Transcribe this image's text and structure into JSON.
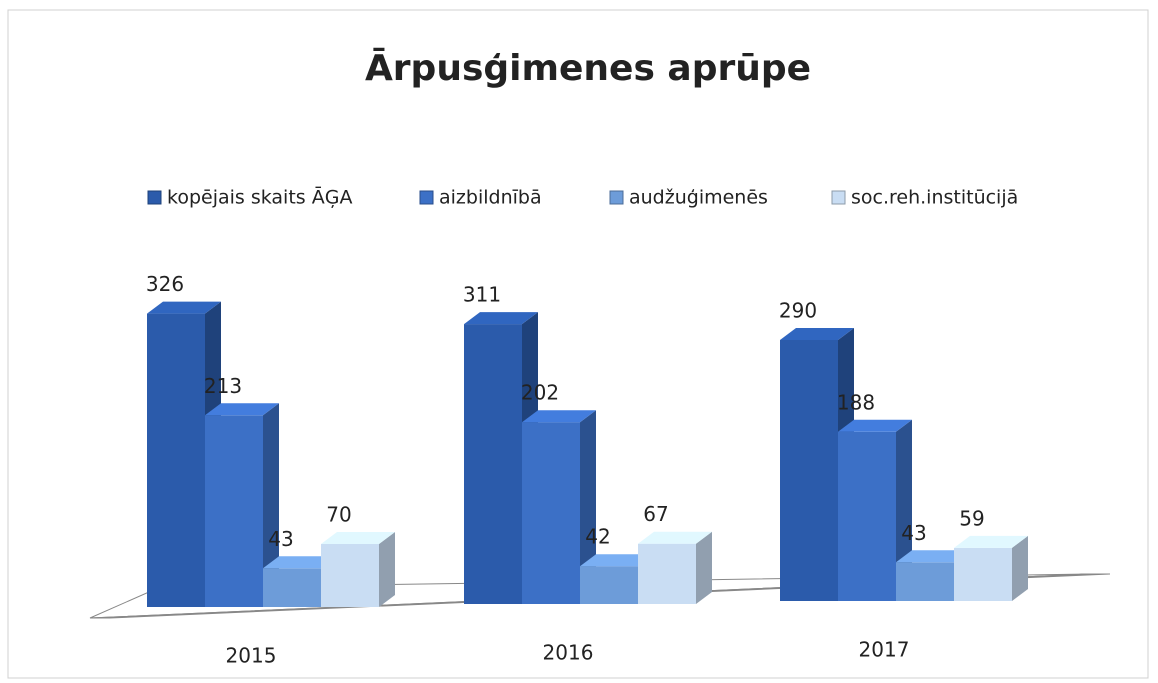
{
  "chart_data": {
    "type": "bar3d",
    "title": "Ārpusģimenes aprūpe",
    "categories": [
      "2015",
      "2016",
      "2017"
    ],
    "series": [
      {
        "name": "kopējais skaits ĀĢA",
        "color": "#2b5bab",
        "values": [
          326,
          311,
          290
        ]
      },
      {
        "name": "aizbildnībā",
        "color": "#3c70c6",
        "values": [
          213,
          202,
          188
        ]
      },
      {
        "name": "audžuģimenēs",
        "color": "#6d9cd9",
        "values": [
          43,
          42,
          43
        ]
      },
      {
        "name": "soc.reh.institūcijā",
        "color": "#c9ddf3",
        "values": [
          70,
          67,
          59
        ]
      }
    ],
    "legend": "top"
  }
}
